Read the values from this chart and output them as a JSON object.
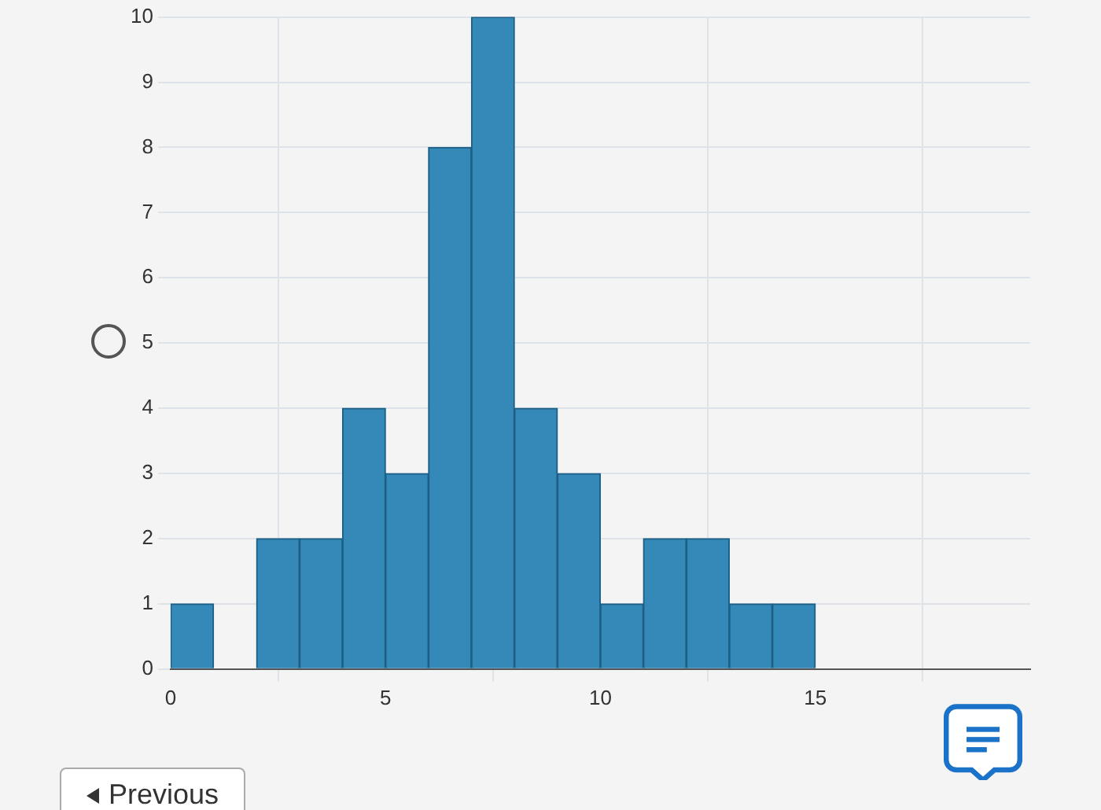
{
  "chart_data": {
    "type": "histogram",
    "bins": [
      0,
      1,
      2,
      3,
      4,
      5,
      6,
      7,
      8,
      9,
      10,
      11,
      12,
      13,
      14,
      15
    ],
    "values": [
      1,
      0,
      2,
      2,
      4,
      3,
      8,
      10,
      4,
      3,
      1,
      2,
      2,
      1,
      1
    ],
    "color": "#3489b8",
    "xlim": [
      0,
      20
    ],
    "xticks": [
      0,
      5,
      10,
      15
    ],
    "ylim": [
      0,
      10
    ],
    "yticks": [
      0,
      1,
      2,
      3,
      4,
      5,
      6,
      7,
      8,
      9,
      10
    ],
    "grid": true,
    "annotations": [
      "Previous"
    ]
  }
}
